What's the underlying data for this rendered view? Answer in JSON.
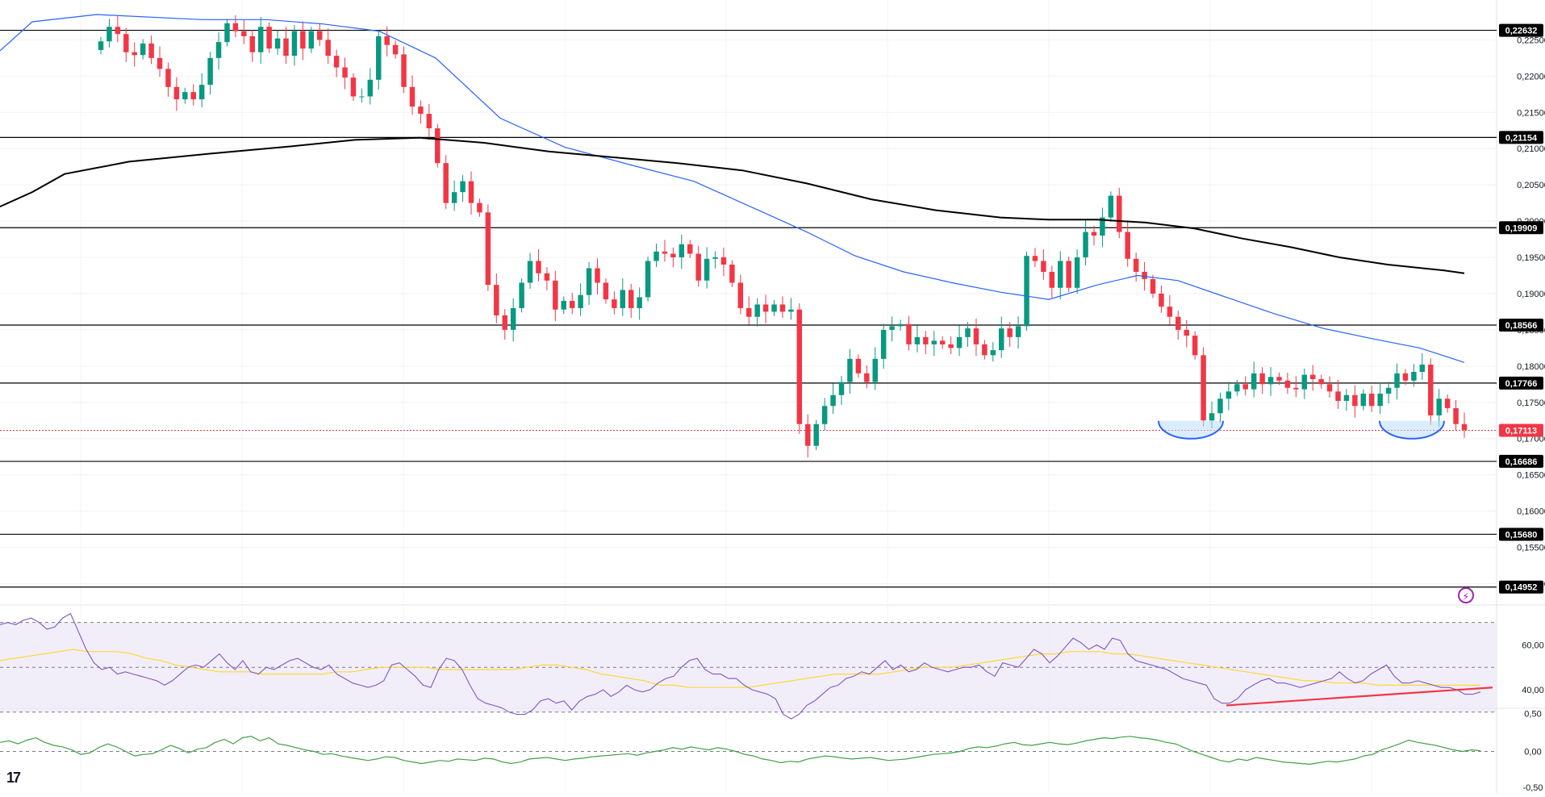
{
  "chart_data": {
    "type": "candlestick",
    "price_panel": {
      "ylim": [
        0.1476,
        0.2305
      ],
      "tick_labels": [
        "0,22500",
        "0,22000",
        "0,21500",
        "0,21000",
        "0,20500",
        "0,20000",
        "0,19500",
        "0,19000",
        "0,18500",
        "0,18000",
        "0,17500",
        "0,17000",
        "0,16500",
        "0,16000",
        "0,15500",
        "0,15000"
      ],
      "tick_values": [
        0.225,
        0.22,
        0.215,
        0.21,
        0.205,
        0.2,
        0.195,
        0.19,
        0.185,
        0.18,
        0.175,
        0.17,
        0.165,
        0.16,
        0.155,
        0.15
      ],
      "levels": [
        {
          "value": 0.22632,
          "label": "0,22632"
        },
        {
          "value": 0.21154,
          "label": "0,21154"
        },
        {
          "value": 0.19909,
          "label": "0,19909"
        },
        {
          "value": 0.18566,
          "label": "0,18566"
        },
        {
          "value": 0.17766,
          "label": "0,17766"
        },
        {
          "value": 0.16686,
          "label": "0,16686"
        },
        {
          "value": 0.1568,
          "label": "0,15680"
        },
        {
          "value": 0.14952,
          "label": "0,14952"
        }
      ],
      "last_price": {
        "value": 0.17113,
        "label": "0,17113"
      },
      "candles_close": [
        0.2248,
        0.2268,
        0.2258,
        0.2233,
        0.2229,
        0.2245,
        0.2225,
        0.221,
        0.2185,
        0.2168,
        0.2178,
        0.2168,
        0.2188,
        0.2225,
        0.2247,
        0.2273,
        0.2262,
        0.2255,
        0.2233,
        0.2268,
        0.2238,
        0.2252,
        0.2228,
        0.2262,
        0.2238,
        0.2262,
        0.225,
        0.2228,
        0.2212,
        0.2198,
        0.2172,
        0.2172,
        0.2195,
        0.2255,
        0.2243,
        0.223,
        0.2185,
        0.2158,
        0.2148,
        0.2128,
        0.208,
        0.2025,
        0.204,
        0.2055,
        0.2025,
        0.2012,
        0.1912,
        0.187,
        0.185,
        0.188,
        0.1915,
        0.1945,
        0.1928,
        0.1918,
        0.1878,
        0.189,
        0.188,
        0.1898,
        0.1935,
        0.1915,
        0.1892,
        0.188,
        0.1905,
        0.188,
        0.1895,
        0.1945,
        0.1958,
        0.1955,
        0.195,
        0.1968,
        0.1955,
        0.1918,
        0.1948,
        0.195,
        0.194,
        0.1915,
        0.188,
        0.1868,
        0.1885,
        0.1875,
        0.1885,
        0.1875,
        0.1878,
        0.172,
        0.169,
        0.172,
        0.1745,
        0.176,
        0.1778,
        0.181,
        0.179,
        0.1778,
        0.181,
        0.185,
        0.1855,
        0.1858,
        0.183,
        0.184,
        0.183,
        0.1835,
        0.183,
        0.1825,
        0.184,
        0.1852,
        0.183,
        0.1815,
        0.1822,
        0.1852,
        0.184,
        0.1855,
        0.1952,
        0.1945,
        0.193,
        0.1908,
        0.1945,
        0.1908,
        0.195,
        0.1985,
        0.198,
        0.2005,
        0.2035,
        0.1985,
        0.1948,
        0.193,
        0.192,
        0.19,
        0.1882,
        0.1868,
        0.185,
        0.1842,
        0.1815,
        0.1725,
        0.1735,
        0.1755,
        0.1765,
        0.1775,
        0.1768,
        0.179,
        0.1775,
        0.1785,
        0.178,
        0.177,
        0.1768,
        0.1788,
        0.1782,
        0.1775,
        0.1765,
        0.1752,
        0.176,
        0.1745,
        0.1762,
        0.1745,
        0.1762,
        0.177,
        0.179,
        0.178,
        0.1792,
        0.1802,
        0.1732,
        0.1755,
        0.1742,
        0.172,
        0.1712
      ],
      "ma_fast": [
        [
          0,
          0.2235
        ],
        [
          40,
          0.2275
        ],
        [
          120,
          0.2285
        ],
        [
          250,
          0.2278
        ],
        [
          330,
          0.2278
        ],
        [
          400,
          0.2272
        ],
        [
          470,
          0.2262
        ],
        [
          540,
          0.2225
        ],
        [
          620,
          0.2142
        ],
        [
          700,
          0.2102
        ],
        [
          780,
          0.2078
        ],
        [
          860,
          0.2055
        ],
        [
          940,
          0.2015
        ],
        [
          1000,
          0.1985
        ],
        [
          1060,
          0.1952
        ],
        [
          1120,
          0.193
        ],
        [
          1180,
          0.1915
        ],
        [
          1240,
          0.1902
        ],
        [
          1300,
          0.1892
        ],
        [
          1360,
          0.1912
        ],
        [
          1410,
          0.1925
        ],
        [
          1460,
          0.1918
        ],
        [
          1520,
          0.1895
        ],
        [
          1580,
          0.1872
        ],
        [
          1640,
          0.1852
        ],
        [
          1700,
          0.1838
        ],
        [
          1760,
          0.1825
        ],
        [
          1815,
          0.1805
        ]
      ],
      "ma_slow": [
        [
          0,
          0.202
        ],
        [
          40,
          0.204
        ],
        [
          80,
          0.2065
        ],
        [
          160,
          0.2082
        ],
        [
          260,
          0.2093
        ],
        [
          360,
          0.2103
        ],
        [
          440,
          0.2112
        ],
        [
          520,
          0.2115
        ],
        [
          600,
          0.2108
        ],
        [
          680,
          0.2096
        ],
        [
          760,
          0.2088
        ],
        [
          840,
          0.208
        ],
        [
          920,
          0.207
        ],
        [
          1000,
          0.2052
        ],
        [
          1080,
          0.203
        ],
        [
          1160,
          0.2015
        ],
        [
          1240,
          0.2005
        ],
        [
          1300,
          0.2002
        ],
        [
          1360,
          0.2002
        ],
        [
          1420,
          0.1998
        ],
        [
          1480,
          0.199
        ],
        [
          1540,
          0.1976
        ],
        [
          1600,
          0.1964
        ],
        [
          1660,
          0.195
        ],
        [
          1720,
          0.194
        ],
        [
          1790,
          0.1932
        ],
        [
          1815,
          0.1928
        ]
      ],
      "bowls": [
        [
          1476,
          0.1711
        ],
        [
          1750,
          0.1711
        ]
      ],
      "colors": {
        "up": "#089981",
        "down": "#f23645",
        "ma_fast": "#2962ff",
        "ma_slow": "#000000"
      }
    },
    "rsi_panel": {
      "ylim": [
        31,
        76
      ],
      "tick_labels": [
        "60,00",
        "40,00"
      ],
      "tick_values": [
        60,
        40
      ],
      "band": [
        70,
        30
      ],
      "rsi": [
        69,
        70,
        69,
        71,
        72,
        70,
        67,
        68,
        72,
        74,
        66,
        58,
        52,
        49,
        50,
        47,
        48,
        47,
        46,
        45,
        44,
        42,
        44,
        47,
        50,
        51,
        50,
        53,
        56,
        52,
        49,
        53,
        48,
        47,
        50,
        49,
        51,
        53,
        54,
        52,
        50,
        49,
        51,
        47,
        45,
        43,
        42,
        41,
        42,
        44,
        51,
        52,
        49,
        46,
        42,
        41,
        49,
        54,
        53,
        49,
        42,
        36,
        34,
        33,
        32,
        30,
        29,
        29,
        31,
        35,
        36,
        34,
        35,
        31,
        35,
        37,
        38,
        40,
        37,
        39,
        42,
        40,
        39,
        40,
        43,
        45,
        46,
        50,
        53,
        54,
        49,
        47,
        47,
        45,
        45,
        42,
        40,
        39,
        38,
        36,
        29,
        27,
        29,
        33,
        35,
        38,
        41,
        42,
        45,
        46,
        48,
        47,
        50,
        53,
        49,
        51,
        48,
        49,
        52,
        50,
        49,
        48,
        49,
        50,
        50,
        51,
        48,
        46,
        52,
        51,
        50,
        54,
        58,
        56,
        52,
        55,
        59,
        63,
        61,
        58,
        60,
        58,
        63,
        62,
        56,
        53,
        52,
        51,
        50,
        49,
        47,
        45,
        44,
        43,
        42,
        36,
        34,
        34,
        36,
        40,
        42,
        44,
        45,
        43,
        43,
        42,
        41,
        42,
        43,
        44,
        45,
        48,
        45,
        43,
        44,
        47,
        49,
        51,
        46,
        43,
        43,
        44,
        43,
        42,
        41,
        41,
        40,
        38,
        38,
        39
      ],
      "rsi_ma": [
        53,
        54,
        55,
        56,
        57,
        58,
        57,
        57,
        57,
        56,
        54,
        53,
        51,
        50,
        49,
        48,
        48,
        48,
        47,
        47,
        47,
        47,
        47,
        48,
        48,
        49,
        50,
        50,
        50,
        50,
        49,
        49,
        49,
        49,
        49,
        49,
        50,
        51,
        51,
        50,
        49,
        47,
        46,
        45,
        44,
        42,
        42,
        41,
        41,
        41,
        41,
        41,
        42,
        43,
        44,
        45,
        46,
        47,
        47,
        47,
        47,
        48,
        49,
        50,
        50,
        50,
        51,
        52,
        53,
        54,
        55,
        56,
        56,
        57,
        57,
        57,
        56,
        56,
        55,
        54,
        53,
        52,
        51,
        50,
        49,
        48,
        47,
        46,
        45,
        44,
        44,
        43,
        43,
        43,
        42,
        42,
        42,
        42,
        42,
        42,
        42,
        42
      ],
      "trend_line": [
        [
          1520,
          33
        ],
        [
          1850,
          41
        ]
      ],
      "colors": {
        "rsi": "#7e57c2",
        "rsi_ma": "#fdd835",
        "trend": "#f23645",
        "band_fill": "#ede7f6"
      }
    },
    "osc_panel": {
      "ylim": [
        -0.55,
        0.55
      ],
      "tick_labels": [
        "0,50",
        "0,00",
        "-0,50"
      ],
      "tick_values": [
        0.5,
        0.0,
        -0.5
      ],
      "values": [
        0.12,
        0.14,
        0.1,
        0.15,
        0.18,
        0.12,
        0.08,
        0.06,
        0.02,
        -0.04,
        -0.02,
        0.05,
        0.1,
        0.06,
        0.0,
        -0.06,
        -0.04,
        -0.03,
        0.02,
        0.08,
        0.04,
        -0.02,
        0.03,
        0.05,
        0.12,
        0.16,
        0.1,
        0.18,
        0.2,
        0.14,
        0.18,
        0.1,
        0.08,
        0.05,
        0.02,
        0.0,
        -0.04,
        -0.03,
        -0.06,
        -0.08,
        -0.1,
        -0.12,
        -0.1,
        -0.07,
        -0.08,
        -0.12,
        -0.14,
        -0.16,
        -0.14,
        -0.12,
        -0.13,
        -0.1,
        -0.11,
        -0.12,
        -0.09,
        -0.1,
        -0.14,
        -0.16,
        -0.14,
        -0.1,
        -0.09,
        -0.08,
        -0.1,
        -0.12,
        -0.1,
        -0.09,
        -0.07,
        -0.06,
        -0.05,
        -0.04,
        -0.03,
        -0.05,
        -0.02,
        0.0,
        0.02,
        0.05,
        0.03,
        0.06,
        0.04,
        0.02,
        0.05,
        0.03,
        0.0,
        -0.04,
        -0.06,
        -0.1,
        -0.12,
        -0.15,
        -0.13,
        -0.14,
        -0.1,
        -0.08,
        -0.06,
        -0.07,
        -0.09,
        -0.1,
        -0.09,
        -0.08,
        -0.1,
        -0.12,
        -0.11,
        -0.1,
        -0.08,
        -0.06,
        -0.04,
        -0.03,
        -0.02,
        0.0,
        0.04,
        0.06,
        0.05,
        0.07,
        0.1,
        0.12,
        0.09,
        0.08,
        0.1,
        0.12,
        0.1,
        0.09,
        0.11,
        0.14,
        0.16,
        0.18,
        0.17,
        0.19,
        0.2,
        0.18,
        0.17,
        0.15,
        0.12,
        0.1,
        0.05,
        0.0,
        -0.04,
        -0.08,
        -0.12,
        -0.14,
        -0.1,
        -0.12,
        -0.08,
        -0.1,
        -0.12,
        -0.14,
        -0.15,
        -0.16,
        -0.17,
        -0.15,
        -0.13,
        -0.14,
        -0.12,
        -0.1,
        -0.06,
        -0.04,
        0.02,
        0.06,
        0.1,
        0.15,
        0.12,
        0.1,
        0.08,
        0.05,
        0.02,
        0.0,
        0.02,
        0.01
      ],
      "colors": {
        "line": "#43a047"
      }
    }
  }
}
